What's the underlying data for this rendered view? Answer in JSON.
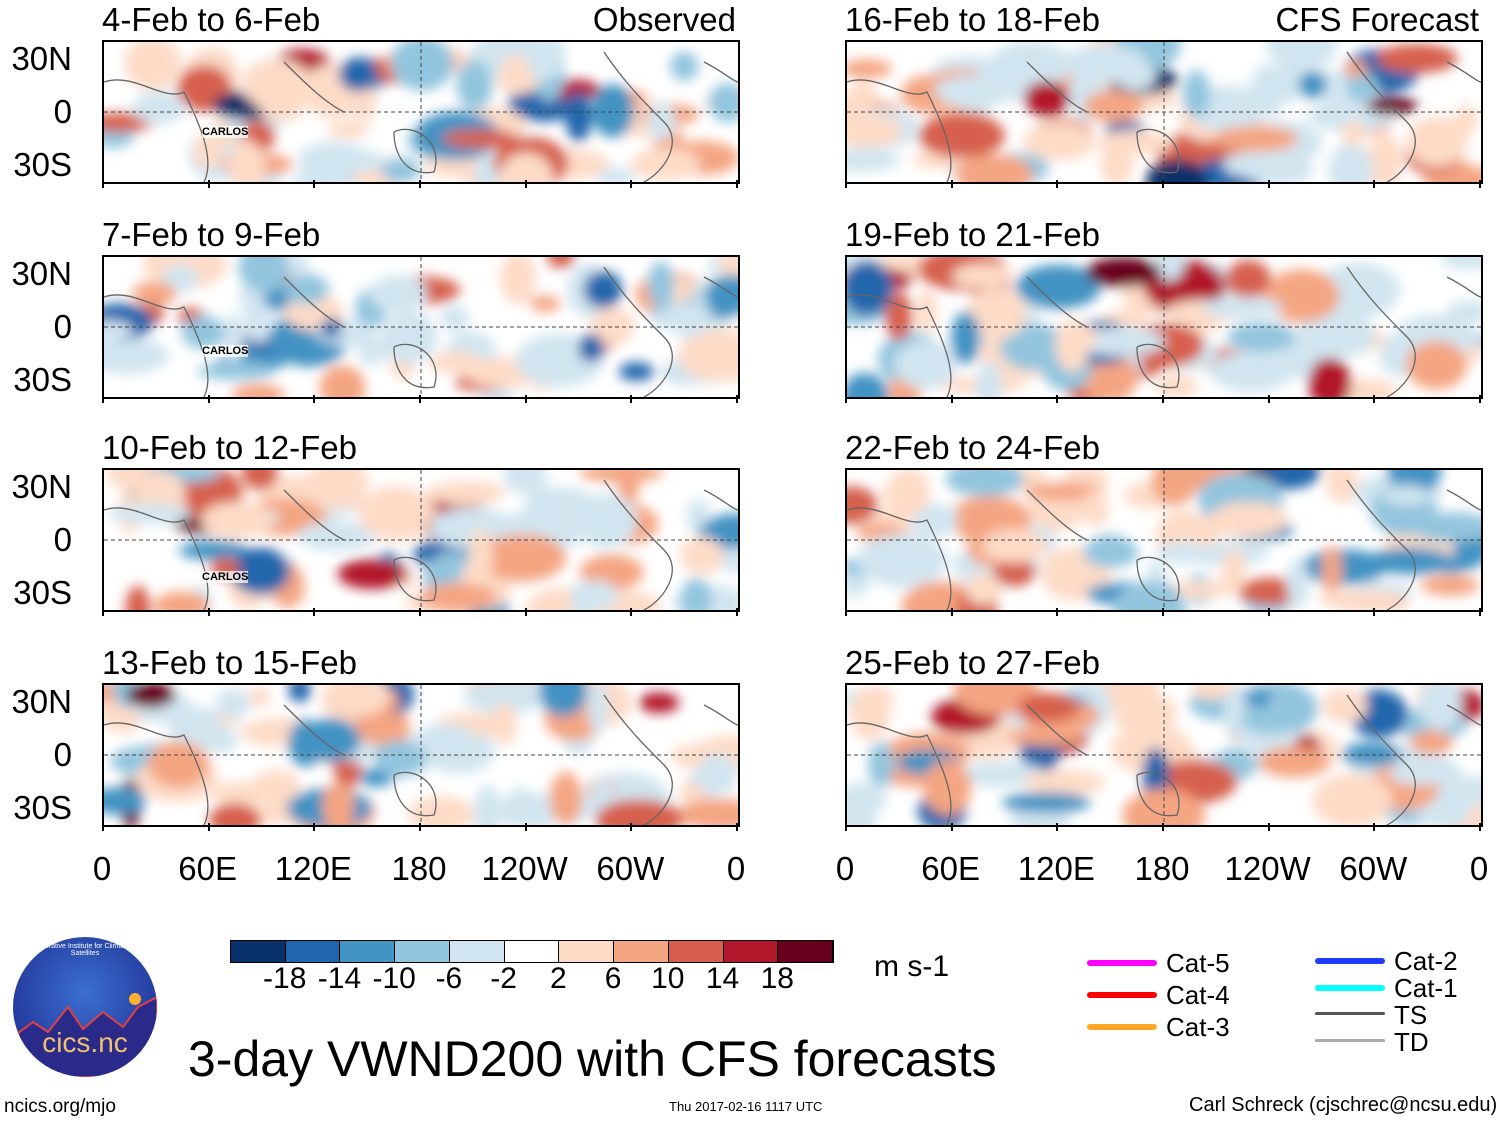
{
  "panels": [
    {
      "title": "4-Feb to 6-Feb",
      "tag": "Observed",
      "storm": "CARLOS"
    },
    {
      "title": "16-Feb to 18-Feb",
      "tag": "CFS Forecast"
    },
    {
      "title": "7-Feb to 9-Feb",
      "storm": "CARLOS"
    },
    {
      "title": "19-Feb to 21-Feb"
    },
    {
      "title": "10-Feb to 12-Feb",
      "storm": "CARLOS"
    },
    {
      "title": "22-Feb to 24-Feb"
    },
    {
      "title": "13-Feb to 15-Feb"
    },
    {
      "title": "25-Feb to 27-Feb"
    }
  ],
  "lat_labels": [
    "30N",
    "0",
    "30S"
  ],
  "lon_labels": [
    "0",
    "60E",
    "120E",
    "180",
    "120W",
    "60W",
    "0"
  ],
  "colorbar": {
    "colors": [
      "#08306b",
      "#2166ac",
      "#4393c3",
      "#92c5de",
      "#d1e5f0",
      "#ffffff",
      "#fddbc7",
      "#f4a582",
      "#d6604d",
      "#b2182b",
      "#67001f"
    ],
    "labels": [
      "-18",
      "-14",
      "-10",
      "-6",
      "-2",
      "2",
      "6",
      "10",
      "14",
      "18"
    ],
    "units": "m s-1"
  },
  "legend": [
    {
      "label": "Cat-5",
      "color": "#ff00ff"
    },
    {
      "label": "Cat-4",
      "color": "#ff0000"
    },
    {
      "label": "Cat-3",
      "color": "#ffa726"
    },
    {
      "label": "Cat-2",
      "color": "#1e3cff"
    },
    {
      "label": "Cat-1",
      "color": "#00ffff"
    },
    {
      "label": "TS",
      "color": "#555555"
    },
    {
      "label": "TD",
      "color": "#aaaaaa"
    }
  ],
  "logo_text": "cics.nc",
  "logo_ring": "Cooperative Institute for Climate and Satellites",
  "main_title": "3-day VWND200 with CFS forecasts",
  "footer": {
    "left": "ncics.org/mjo",
    "center": "Thu 2017-02-16 1117 UTC",
    "right": "Carl Schreck (cjschrec@ncsu.edu)"
  }
}
